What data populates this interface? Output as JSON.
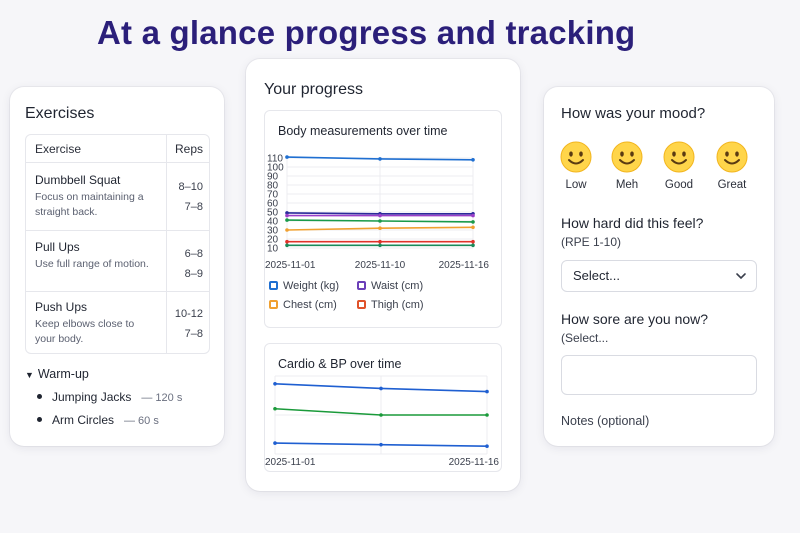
{
  "headline": "At a glance progress and tracking",
  "exercises": {
    "title": "Exercises",
    "col_exercise": "Exercise",
    "col_reps": "Reps",
    "rows": [
      {
        "name": "Dumbbell Squat",
        "tip_line1": "Focus on maintaining a",
        "tip_line2": "straight back.",
        "reps1": "8–10",
        "reps2": "7–8"
      },
      {
        "name": "Pull Ups",
        "tip_line1": "Use full range of motion.",
        "tip_line2": "",
        "reps1": "6–8",
        "reps2": "8–9"
      },
      {
        "name": "Push Ups",
        "tip_line1": "Keep elbows close to",
        "tip_line2": "your body.",
        "reps1": "10-12",
        "reps2": "7–8"
      }
    ],
    "warmup": {
      "title": "Warm-up",
      "items": [
        {
          "name": "Jumping Jacks",
          "duration": "— 120 s"
        },
        {
          "name": "Arm Circles",
          "duration": "— 60 s"
        }
      ]
    }
  },
  "progress": {
    "title": "Your progress",
    "body_chart_title": "Body measurements over time",
    "cardio_chart_title": "Cardio & BP over time",
    "legend": [
      {
        "label": "Weight (kg)",
        "color": "#1f6fd1"
      },
      {
        "label": "Waist (cm)",
        "color": "#6b3fb8"
      },
      {
        "label": "Chest (cm)",
        "color": "#f0a030"
      },
      {
        "label": "Thigh (cm)",
        "color": "#e0522a"
      }
    ]
  },
  "chart_data": [
    {
      "type": "line",
      "title": "Body measurements over time",
      "x": [
        "2025-11-01",
        "2025-11-10",
        "2025-11-16"
      ],
      "yticks": [
        10,
        20,
        30,
        40,
        50,
        60,
        70,
        80,
        90,
        100,
        110
      ],
      "ylim": [
        10,
        110
      ],
      "grid": true,
      "legend_position": "bottom",
      "series": [
        {
          "color": "#1f6fd1",
          "values": [
            111,
            109,
            108
          ]
        },
        {
          "color": "#2a2a9a",
          "values": [
            49,
            48,
            48
          ]
        },
        {
          "color": "#9a3fc8",
          "values": [
            46,
            46,
            46
          ]
        },
        {
          "color": "#1a9a4a",
          "values": [
            41,
            40,
            39
          ]
        },
        {
          "color": "#f0a030",
          "values": [
            30,
            32,
            33
          ]
        },
        {
          "color": "#e0322a",
          "values": [
            17,
            17,
            17
          ]
        },
        {
          "color": "#1a8a5a",
          "values": [
            13,
            13,
            13
          ]
        }
      ]
    },
    {
      "type": "line",
      "title": "Cardio & BP over time",
      "x": [
        "2025-11-01",
        "2025-11-16"
      ],
      "ylim": [
        0,
        100
      ],
      "grid": true,
      "series": [
        {
          "color": "#1f5fd1",
          "x": [
            "2025-11-01",
            "2025-11-10",
            "2025-11-16"
          ],
          "values": [
            90,
            84,
            80
          ]
        },
        {
          "color": "#1a9a3a",
          "x": [
            "2025-11-01",
            "2025-11-10",
            "2025-11-16"
          ],
          "values": [
            58,
            50,
            50
          ]
        },
        {
          "color": "#1f5fd1",
          "x": [
            "2025-11-01",
            "2025-11-10",
            "2025-11-16"
          ],
          "values": [
            14,
            12,
            10
          ]
        }
      ]
    }
  ],
  "mood": {
    "title": "How was your mood?",
    "options": [
      {
        "label": "Low",
        "icon": "smiley-icon"
      },
      {
        "label": "Meh",
        "icon": "smiley-icon"
      },
      {
        "label": "Good",
        "icon": "smiley-icon"
      },
      {
        "label": "Great",
        "icon": "smiley-icon"
      }
    ],
    "rpe_question": "How hard did this feel?",
    "rpe_sub": "(RPE 1-10)",
    "rpe_select": "Select...",
    "sore_question": "How sore are you now?",
    "sore_sub": "(Select...",
    "notes_label": "Notes (optional)"
  }
}
